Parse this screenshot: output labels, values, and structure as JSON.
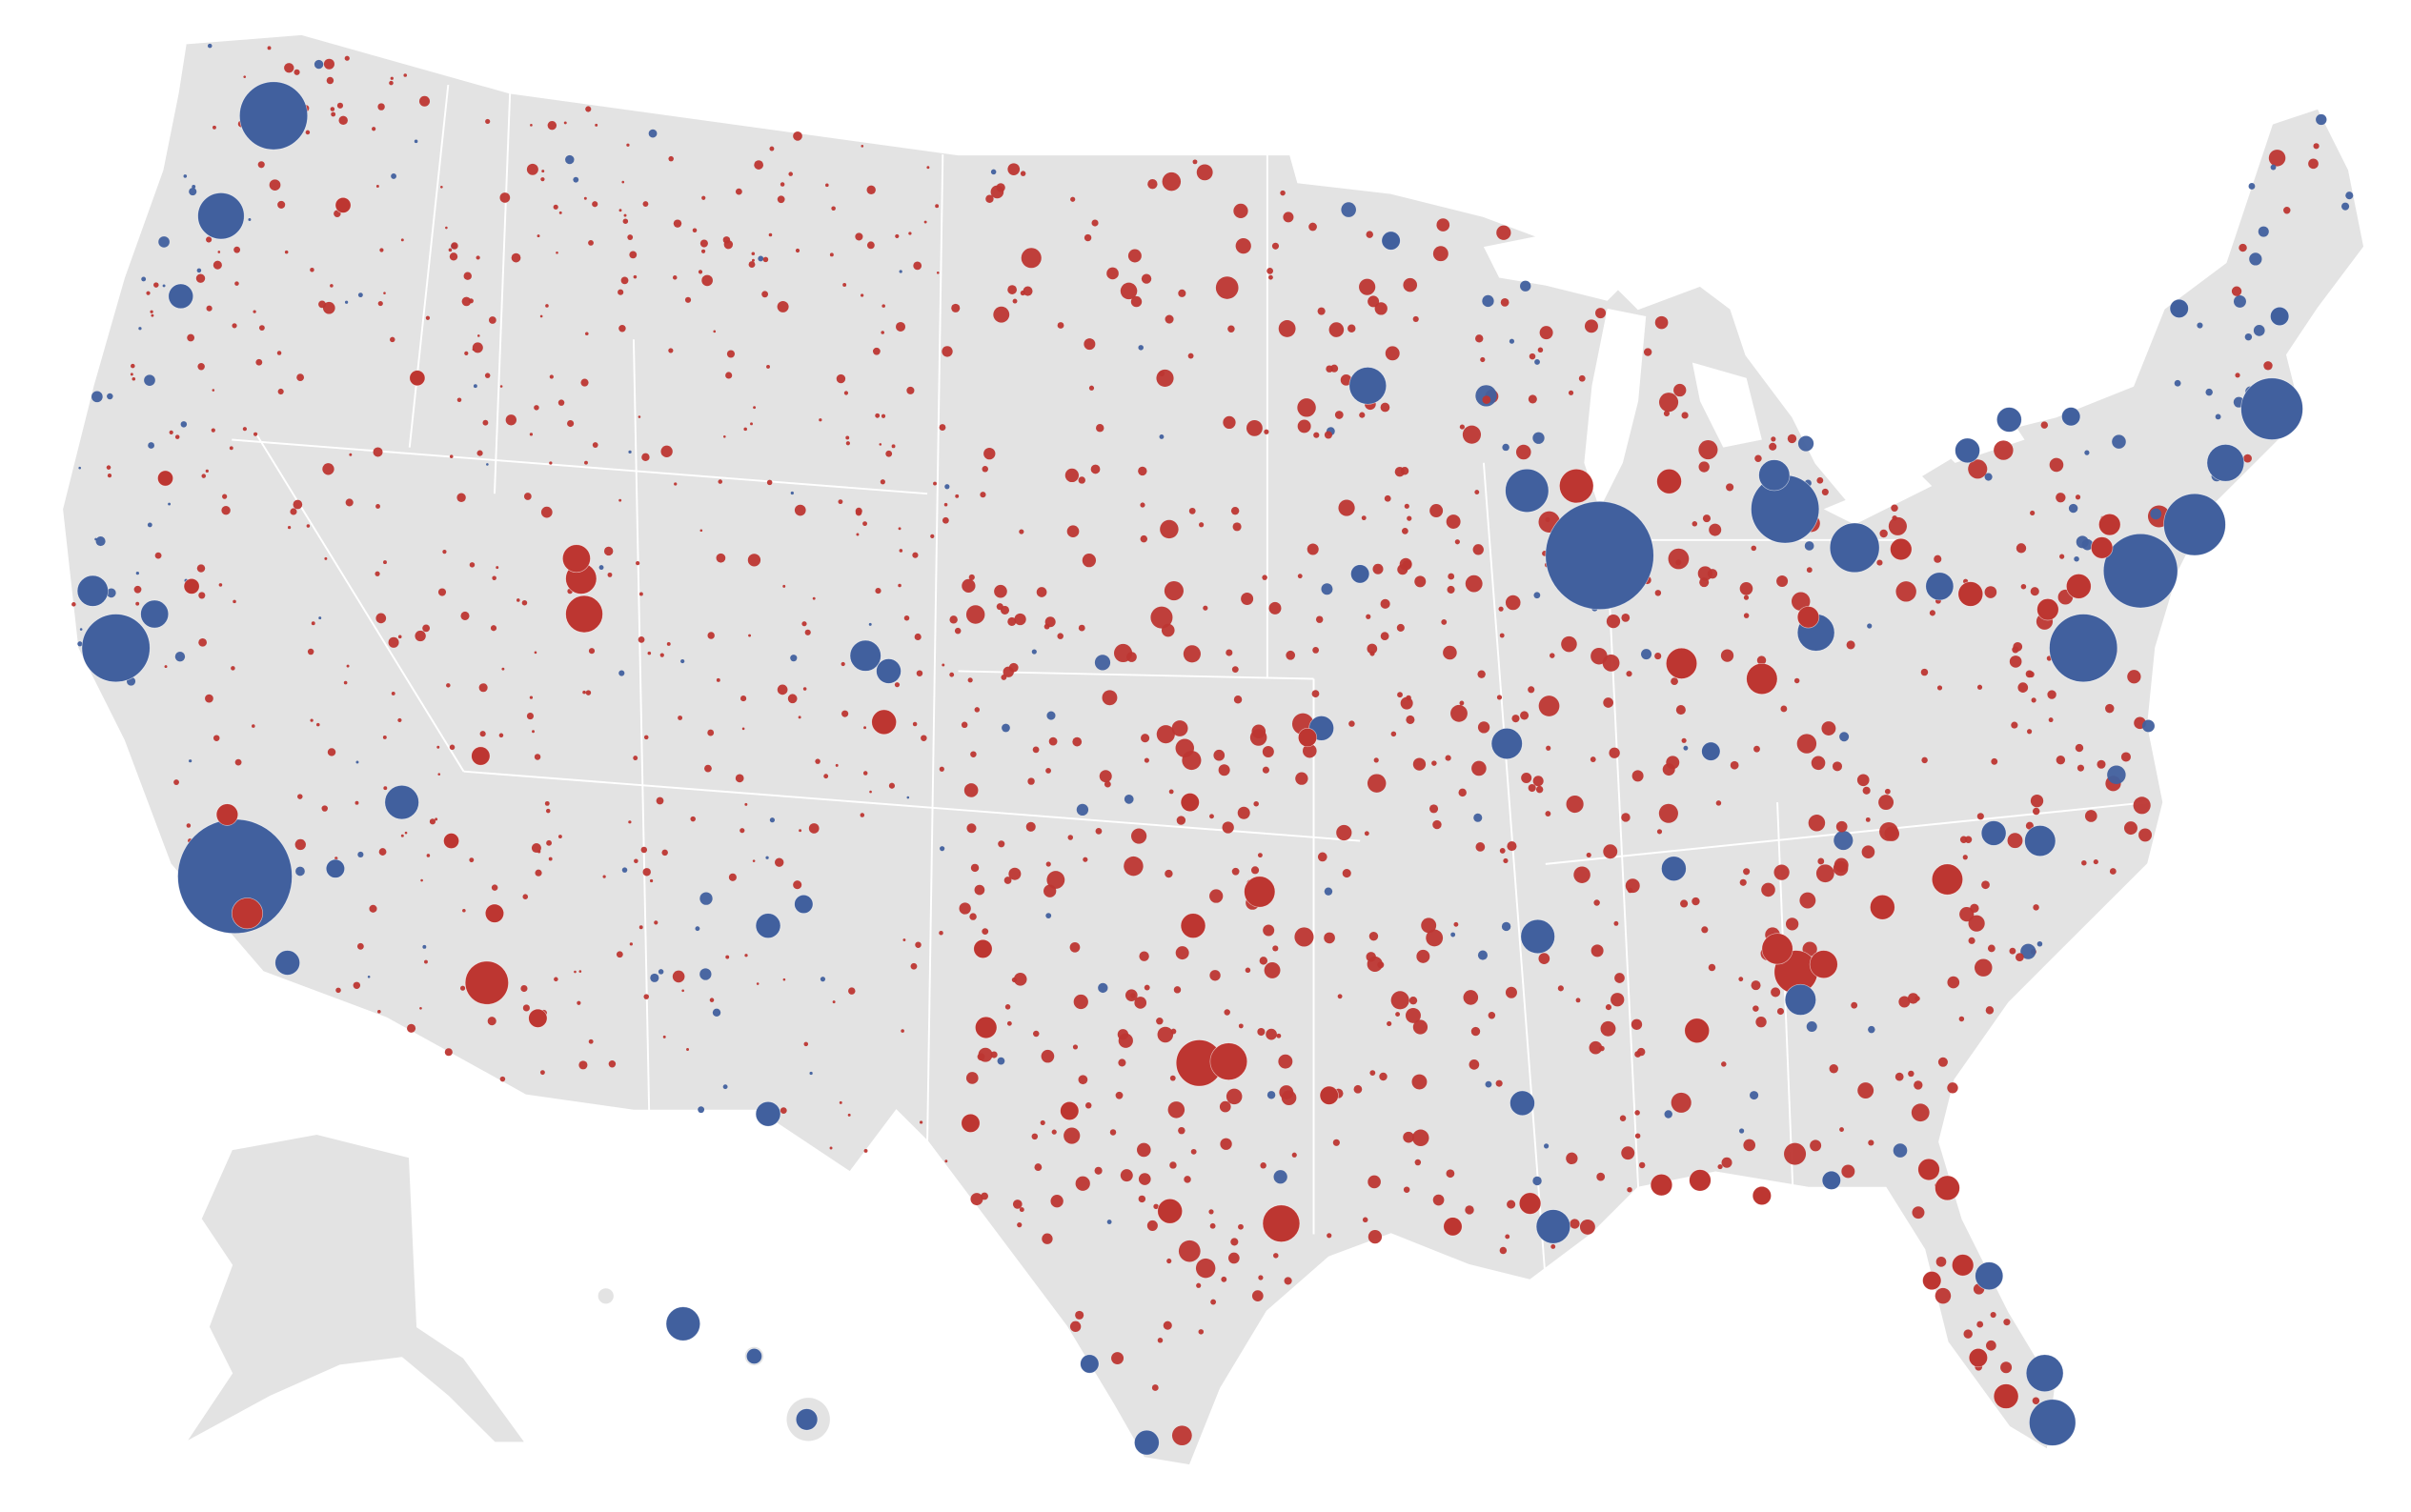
{
  "map": {
    "land": "#e3e3e3",
    "border": "#ffffff",
    "colors": [
      "#41609e",
      "#bd3631"
    ]
  }
}
